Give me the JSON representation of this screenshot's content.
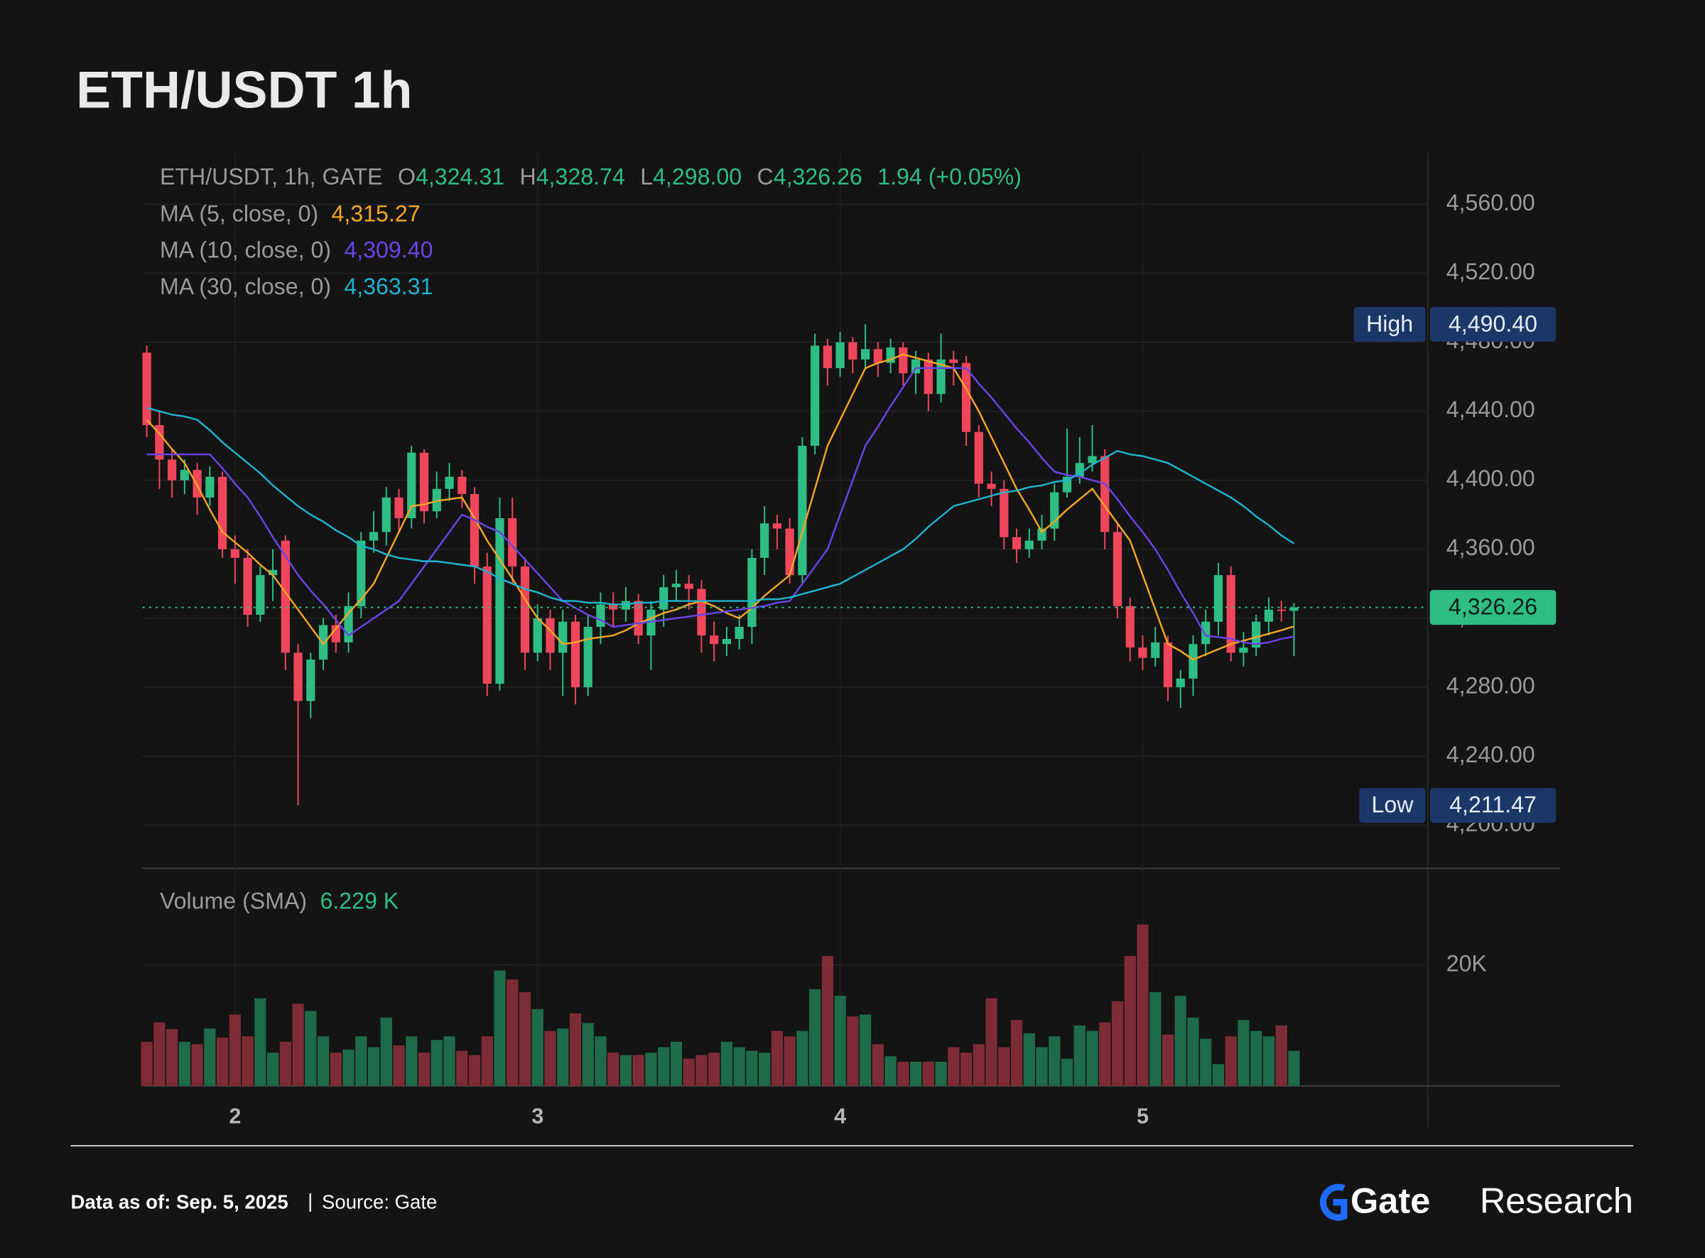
{
  "chart_data": {
    "type": "candlestick",
    "title": "ETH/USDT 1h",
    "header": {
      "text": "ETH/USDT, 1h, GATE",
      "fields": [
        {
          "key": "O",
          "value": 4324.31,
          "label": "4,324.31"
        },
        {
          "key": "H",
          "value": 4328.74,
          "label": "4,328.74"
        },
        {
          "key": "L",
          "value": 4298.0,
          "label": "4,298.00"
        },
        {
          "key": "C",
          "value": 4326.26,
          "label": "4,326.26"
        }
      ],
      "change": {
        "value": 1.94,
        "percent": 0.05,
        "label": "1.94 (+0.05%)"
      }
    },
    "categories": [
      null,
      null,
      null,
      null,
      null,
      null,
      null,
      "2",
      null,
      null,
      null,
      null,
      null,
      null,
      null,
      null,
      null,
      null,
      null,
      null,
      null,
      null,
      null,
      null,
      null,
      null,
      null,
      null,
      null,
      null,
      null,
      "3",
      null,
      null,
      null,
      null,
      null,
      null,
      null,
      null,
      null,
      null,
      null,
      null,
      null,
      null,
      null,
      null,
      null,
      null,
      null,
      null,
      null,
      null,
      null,
      "4",
      null,
      null,
      null,
      null,
      null,
      null,
      null,
      null,
      null,
      null,
      null,
      null,
      null,
      null,
      null,
      null,
      null,
      null,
      null,
      null,
      null,
      null,
      null,
      "5",
      null,
      null,
      null,
      null,
      null,
      null,
      null,
      null,
      null,
      null,
      null,
      null
    ],
    "open": [
      4474,
      4432,
      4412,
      4400,
      4406,
      4390,
      4402,
      4360,
      4355,
      4322,
      4345,
      4365,
      4300,
      4272,
      4296,
      4316,
      4306,
      4327,
      4365,
      4370,
      4390,
      4378,
      4416,
      4382,
      4395,
      4402,
      4392,
      4350,
      4282,
      4378,
      4350,
      4300,
      4320,
      4300,
      4318,
      4280,
      4315,
      4328,
      4325,
      4330,
      4310,
      4325,
      4338,
      4340,
      4337,
      4310,
      4305,
      4308,
      4315,
      4355,
      4375,
      4372,
      4345,
      4420,
      4478,
      4465,
      4480,
      4470,
      4476,
      4468,
      4477,
      4462,
      4470,
      4450,
      4470,
      4468,
      4428,
      4398,
      4395,
      4367,
      4360,
      4365,
      4372,
      4393,
      4402,
      4410,
      4414,
      4370,
      4327,
      4303,
      4297,
      4306,
      4280,
      4285,
      4305,
      4318,
      4345,
      4300,
      4303,
      4318,
      4325,
      4324.31
    ],
    "high": [
      4478,
      4440,
      4418,
      4412,
      4410,
      4408,
      4405,
      4368,
      4360,
      4350,
      4360,
      4368,
      4305,
      4300,
      4320,
      4322,
      4335,
      4370,
      4382,
      4396,
      4395,
      4420,
      4418,
      4405,
      4410,
      4406,
      4396,
      4358,
      4390,
      4390,
      4355,
      4328,
      4325,
      4325,
      4322,
      4322,
      4335,
      4335,
      4338,
      4334,
      4330,
      4345,
      4348,
      4345,
      4342,
      4318,
      4315,
      4322,
      4360,
      4385,
      4380,
      4378,
      4425,
      4485,
      4482,
      4486,
      4483,
      4490.4,
      4480,
      4482,
      4480,
      4475,
      4474,
      4485,
      4475,
      4472,
      4432,
      4405,
      4400,
      4372,
      4372,
      4380,
      4398,
      4430,
      4425,
      4432,
      4418,
      4375,
      4332,
      4310,
      4315,
      4310,
      4290,
      4310,
      4325,
      4352,
      4350,
      4312,
      4322,
      4332,
      4330,
      4328.74
    ],
    "low": [
      4425,
      4395,
      4390,
      4392,
      4380,
      4385,
      4355,
      4340,
      4315,
      4318,
      4330,
      4290,
      4211.47,
      4262,
      4290,
      4300,
      4300,
      4320,
      4358,
      4362,
      4370,
      4372,
      4375,
      4378,
      4388,
      4384,
      4340,
      4275,
      4278,
      4340,
      4290,
      4295,
      4290,
      4275,
      4270,
      4275,
      4305,
      4315,
      4318,
      4305,
      4290,
      4315,
      4330,
      4325,
      4300,
      4295,
      4298,
      4302,
      4305,
      4345,
      4360,
      4340,
      4340,
      4415,
      4455,
      4460,
      4462,
      4465,
      4460,
      4462,
      4455,
      4450,
      4440,
      4445,
      4455,
      4420,
      4390,
      4385,
      4360,
      4352,
      4355,
      4360,
      4365,
      4390,
      4398,
      4405,
      4360,
      4320,
      4295,
      4290,
      4292,
      4272,
      4268,
      4275,
      4298,
      4310,
      4295,
      4292,
      4298,
      4310,
      4318,
      4298.0
    ],
    "close": [
      4432,
      4412,
      4400,
      4406,
      4390,
      4402,
      4360,
      4355,
      4322,
      4345,
      4348,
      4300,
      4272,
      4296,
      4316,
      4306,
      4327,
      4365,
      4370,
      4390,
      4378,
      4416,
      4382,
      4395,
      4402,
      4392,
      4350,
      4282,
      4378,
      4350,
      4300,
      4320,
      4300,
      4318,
      4280,
      4315,
      4328,
      4325,
      4330,
      4310,
      4325,
      4338,
      4340,
      4337,
      4310,
      4305,
      4308,
      4315,
      4355,
      4375,
      4372,
      4345,
      4420,
      4478,
      4465,
      4480,
      4470,
      4476,
      4468,
      4477,
      4462,
      4470,
      4450,
      4470,
      4468,
      4428,
      4398,
      4395,
      4367,
      4360,
      4365,
      4372,
      4393,
      4402,
      4410,
      4414,
      4370,
      4327,
      4303,
      4297,
      4306,
      4280,
      4285,
      4305,
      4318,
      4345,
      4300,
      4303,
      4318,
      4325,
      4324.31,
      4326.26
    ],
    "up_color": "#2ebd85",
    "down_color": "#f0465c",
    "indicators": [
      {
        "name": "MA (5, close, 0)",
        "color": "#f5a623",
        "last_label": "4,315.27",
        "values": [
          4435,
          4427,
          4418,
          4410,
          4397,
          4383,
          4370,
          4364,
          4358,
          4351,
          4345,
          4335,
          4325,
          4315,
          4305,
          4314,
          4323,
          4331,
          4340,
          4355,
          4370,
          4385,
          4386,
          4388,
          4389,
          4390,
          4378,
          4365,
          4354,
          4343,
          4331,
          4320,
          4313,
          4305,
          4306,
          4308,
          4309,
          4310,
          4313,
          4317,
          4320,
          4323,
          4325,
          4328,
          4330,
          4327,
          4323,
          4320,
          4326,
          4333,
          4339,
          4345,
          4370,
          4395,
          4420,
          4435,
          4450,
          4465,
          4468,
          4470,
          4473,
          4471,
          4469,
          4467,
          4465,
          4453,
          4440,
          4425,
          4410,
          4395,
          4383,
          4370,
          4376,
          4383,
          4389,
          4395,
          4385,
          4375,
          4365,
          4345,
          4325,
          4305,
          4301,
          4296,
          4299,
          4302,
          4305,
          4307,
          4309,
          4311,
          4313,
          4315.27
        ]
      },
      {
        "name": "MA (10, close, 0)",
        "color": "#6a44e8",
        "last_label": "4,309.40",
        "values": [
          4415,
          4415,
          4415,
          4415,
          4415,
          4415,
          4407,
          4398,
          4390,
          4379,
          4367,
          4356,
          4345,
          4336,
          4328,
          4319,
          4310,
          4315,
          4320,
          4325,
          4330,
          4340,
          4350,
          4360,
          4370,
          4380,
          4377,
          4373,
          4370,
          4362,
          4354,
          4346,
          4338,
          4330,
          4326,
          4322,
          4319,
          4315,
          4316,
          4317,
          4318,
          4319,
          4320,
          4321,
          4322,
          4323,
          4324,
          4325,
          4326,
          4327,
          4329,
          4330,
          4340,
          4350,
          4360,
          4380,
          4400,
          4420,
          4431,
          4443,
          4454,
          4465,
          4465,
          4465,
          4465,
          4465,
          4456,
          4448,
          4439,
          4430,
          4422,
          4413,
          4405,
          4403,
          4402,
          4400,
          4398,
          4389,
          4379,
          4370,
          4360,
          4348,
          4335,
          4323,
          4310,
          4309,
          4308,
          4306,
          4305,
          4306,
          4308,
          4309.4
        ]
      },
      {
        "name": "MA (30, close, 0)",
        "color": "#1fb3cf",
        "last_label": "4,363.31",
        "values": [
          4442,
          4440,
          4438,
          4437,
          4435,
          4429,
          4422,
          4416,
          4410,
          4404,
          4397,
          4391,
          4385,
          4380,
          4376,
          4371,
          4367,
          4362,
          4360,
          4357,
          4355,
          4354,
          4353,
          4353,
          4352,
          4351,
          4350,
          4347,
          4343,
          4340,
          4337,
          4335,
          4332,
          4330,
          4330,
          4329,
          4329,
          4328,
          4328,
          4329,
          4329,
          4330,
          4330,
          4330,
          4330,
          4330,
          4330,
          4330,
          4330,
          4331,
          4331,
          4332,
          4334,
          4336,
          4338,
          4340,
          4344,
          4348,
          4352,
          4356,
          4360,
          4366,
          4373,
          4379,
          4385,
          4387,
          4389,
          4391,
          4393,
          4394,
          4396,
          4397,
          4399,
          4400,
          4404,
          4409,
          4413,
          4417,
          4415,
          4414,
          4412,
          4410,
          4406,
          4402,
          4398,
          4394,
          4390,
          4385,
          4379,
          4374,
          4368,
          4363.31
        ]
      }
    ],
    "ylim": [
      4175,
      4590
    ],
    "yticks": [
      {
        "value": 4200,
        "label": "4,200.00"
      },
      {
        "value": 4240,
        "label": "4,240.00"
      },
      {
        "value": 4280,
        "label": "4,280.00"
      },
      {
        "value": 4320,
        "label": "4,320.00"
      },
      {
        "value": 4360,
        "label": "4,360.00"
      },
      {
        "value": 4400,
        "label": "4,400.00"
      },
      {
        "value": 4440,
        "label": "4,440.00"
      },
      {
        "value": 4480,
        "label": "4,480.00"
      },
      {
        "value": 4520,
        "label": "4,520.00"
      },
      {
        "value": 4560,
        "label": "4,560.00"
      }
    ],
    "grid": true,
    "high_marker": {
      "label": "High",
      "value": 4490.4,
      "value_label": "4,490.40"
    },
    "low_marker": {
      "label": "Low",
      "value": 4211.47,
      "value_label": "4,211.47"
    },
    "last_price": {
      "value": 4326.26,
      "label": "4,326.26",
      "color": "#2ebd85"
    },
    "volume": {
      "name": "Volume (SMA)",
      "sma": 6229,
      "sma_label": "6.229 K",
      "values": [
        7300,
        10500,
        9400,
        7300,
        6900,
        9500,
        8000,
        11800,
        8200,
        14500,
        5500,
        7300,
        13600,
        12400,
        8200,
        5500,
        6000,
        8200,
        6400,
        11300,
        6700,
        8200,
        5500,
        7600,
        8200,
        5800,
        5100,
        8200,
        19100,
        17600,
        15500,
        12700,
        9100,
        9500,
        12000,
        10400,
        8200,
        5500,
        5100,
        5100,
        5500,
        6400,
        7300,
        4500,
        5100,
        5500,
        7300,
        6400,
        5800,
        5500,
        9100,
        8200,
        9100,
        16000,
        21500,
        14900,
        11500,
        11800,
        6900,
        4900,
        4000,
        4000,
        4000,
        4000,
        6400,
        5500,
        6900,
        14500,
        6400,
        10900,
        8700,
        6400,
        8200,
        4500,
        10000,
        9100,
        10500,
        14000,
        21500,
        26700,
        15500,
        8500,
        14900,
        11300,
        7800,
        3600,
        8200,
        10900,
        9100,
        8200,
        10000,
        5800
      ],
      "up_color": "#1e6b4c",
      "down_color": "#7d2b35",
      "ylim": [
        0,
        36000
      ],
      "yticks": [
        {
          "value": 20000,
          "label": "20K"
        }
      ]
    }
  },
  "footer": {
    "date": "Data as of: Sep. 5, 2025",
    "separator": "|",
    "source": "Source: Gate",
    "brand": "Gate",
    "brand_sub": "Research"
  }
}
